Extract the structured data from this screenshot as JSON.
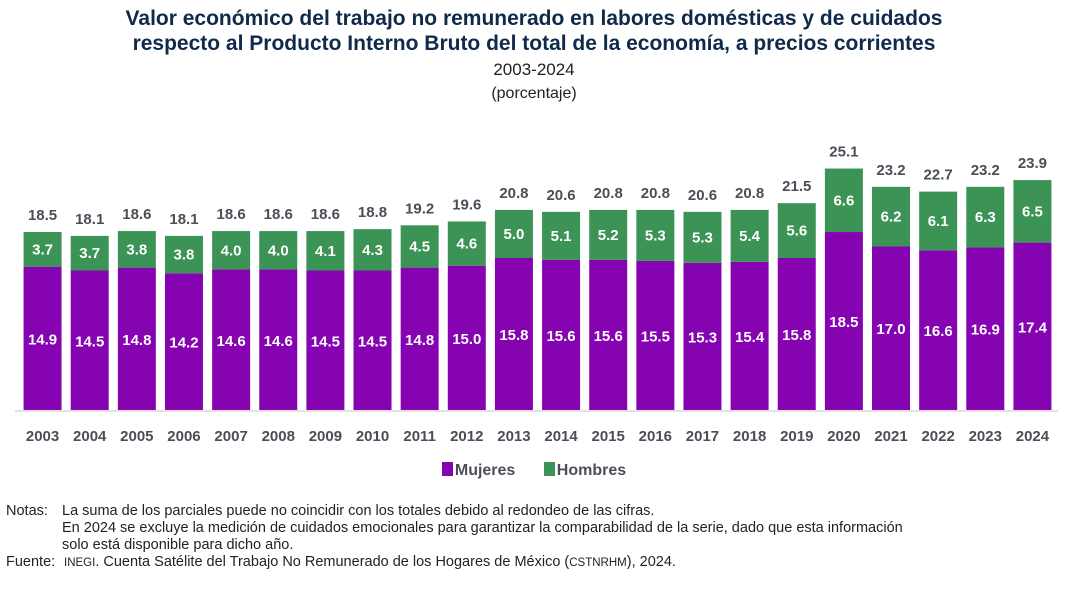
{
  "header": {
    "title_line1": "Valor económico del trabajo no remunerado en labores domésticas y de cuidados",
    "title_line2": "respecto al Producto Interno Bruto del total de la economía, a precios corrientes",
    "period": "2003-2024",
    "unit": "(porcentaje)"
  },
  "chart_data": {
    "type": "bar",
    "stacked": true,
    "title": "Valor económico del trabajo no remunerado en labores domésticas y de cuidados respecto al Producto Interno Bruto del total de la economía, a precios corrientes",
    "subtitle": "2003-2024 (porcentaje)",
    "xlabel": "",
    "ylabel": "",
    "ylim": [
      0,
      26
    ],
    "grid": false,
    "legend": "bottom-center",
    "categories": [
      "2003",
      "2004",
      "2005",
      "2006",
      "2007",
      "2008",
      "2009",
      "2010",
      "2011",
      "2012",
      "2013",
      "2014",
      "2015",
      "2016",
      "2017",
      "2018",
      "2019",
      "2020",
      "2021",
      "2022",
      "2023",
      "2024"
    ],
    "series": [
      {
        "name": "Mujeres",
        "color": "#8503b0",
        "values": [
          14.9,
          14.5,
          14.8,
          14.2,
          14.6,
          14.6,
          14.5,
          14.5,
          14.8,
          15.0,
          15.8,
          15.6,
          15.6,
          15.5,
          15.3,
          15.4,
          15.8,
          18.5,
          17.0,
          16.6,
          16.9,
          17.4
        ]
      },
      {
        "name": "Hombres",
        "color": "#3c9356",
        "values": [
          3.7,
          3.7,
          3.8,
          3.8,
          4.0,
          4.0,
          4.1,
          4.3,
          4.5,
          4.6,
          5.0,
          5.1,
          5.2,
          5.3,
          5.3,
          5.4,
          5.6,
          6.6,
          6.2,
          6.1,
          6.3,
          6.5
        ]
      }
    ],
    "totals": [
      18.5,
      18.1,
      18.6,
      18.1,
      18.6,
      18.6,
      18.6,
      18.8,
      19.2,
      19.6,
      20.8,
      20.6,
      20.8,
      20.8,
      20.6,
      20.8,
      21.5,
      25.1,
      23.2,
      22.7,
      23.2,
      23.9
    ]
  },
  "legend": {
    "items": [
      {
        "label": "Mujeres",
        "color": "#8503b0"
      },
      {
        "label": "Hombres",
        "color": "#3c9356"
      }
    ]
  },
  "footnotes": {
    "notes_label": "Notas:",
    "note1": "La suma de los parciales puede no coincidir con los totales debido al redondeo de las cifras.",
    "note2": "En 2024 se excluye la medición de cuidados emocionales para garantizar la comparabilidad de la serie, dado que esta información",
    "note2_cont": "solo está disponible para dicho año.",
    "source_label": "Fuente:",
    "source_org": "INEGI",
    "source_text_a": ". Cuenta Satélite del Trabajo No Remunerado de los Hogares de México (",
    "source_acronym": "CSTNRHM",
    "source_text_b": "), 2024."
  }
}
